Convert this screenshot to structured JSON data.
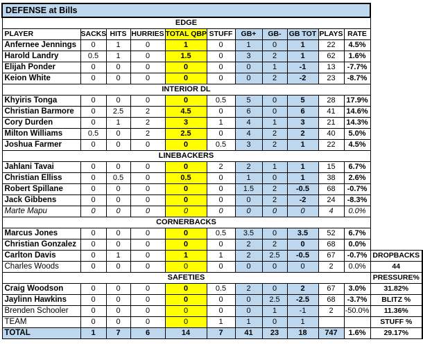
{
  "title": "DEFENSE at Bills",
  "columns": [
    "PLAYER",
    "SACKS",
    "HITS",
    "HURRIES",
    "TOTAL QBP",
    "STUFF",
    "GB+",
    "GB-",
    "GB TOT",
    "PLAYS",
    "RATE"
  ],
  "sections": [
    {
      "name": "EDGE",
      "players": [
        {
          "name": "Anfernee Jennings",
          "style": "bold",
          "values": [
            "0",
            "1",
            "0",
            "1",
            "0",
            "1",
            "0",
            "1",
            "22",
            "4.5%"
          ]
        },
        {
          "name": "Harold Landry",
          "style": "bold",
          "values": [
            "0.5",
            "1",
            "0",
            "1.5",
            "0",
            "3",
            "2",
            "1",
            "62",
            "1.6%"
          ]
        },
        {
          "name": "Elijah Ponder",
          "style": "bold",
          "values": [
            "0",
            "0",
            "0",
            "0",
            "0",
            "0",
            "1",
            "-1",
            "13",
            "-7.7%"
          ]
        },
        {
          "name": "Keion White",
          "style": "bold",
          "values": [
            "0",
            "0",
            "0",
            "0",
            "0",
            "0",
            "2",
            "-2",
            "23",
            "-8.7%"
          ]
        }
      ]
    },
    {
      "name": "INTERIOR DL",
      "players": [
        {
          "name": "Khyiris Tonga",
          "style": "bold",
          "values": [
            "0",
            "0",
            "0",
            "0",
            "0.5",
            "5",
            "0",
            "5",
            "28",
            "17.9%"
          ]
        },
        {
          "name": "Christian Barmore",
          "style": "bold",
          "values": [
            "0",
            "2.5",
            "2",
            "4.5",
            "0",
            "6",
            "0",
            "6",
            "41",
            "14.6%"
          ]
        },
        {
          "name": "Cory Durden",
          "style": "bold",
          "values": [
            "0",
            "1",
            "2",
            "3",
            "1",
            "4",
            "1",
            "3",
            "21",
            "14.3%"
          ]
        },
        {
          "name": "Milton Williams",
          "style": "bold",
          "values": [
            "0.5",
            "0",
            "2",
            "2.5",
            "0",
            "4",
            "2",
            "2",
            "40",
            "5.0%"
          ]
        },
        {
          "name": "Joshua Farmer",
          "style": "bold",
          "values": [
            "0",
            "0",
            "0",
            "0",
            "0.5",
            "3",
            "2",
            "1",
            "22",
            "4.5%"
          ]
        }
      ]
    },
    {
      "name": "LINEBACKERS",
      "players": [
        {
          "name": "Jahlani Tavai",
          "style": "bold",
          "values": [
            "0",
            "0",
            "0",
            "0",
            "2",
            "2",
            "1",
            "1",
            "15",
            "6.7%"
          ]
        },
        {
          "name": "Christian Elliss",
          "style": "bold",
          "values": [
            "0",
            "0.5",
            "0",
            "0.5",
            "0",
            "1",
            "0",
            "1",
            "38",
            "2.6%"
          ]
        },
        {
          "name": "Robert Spillane",
          "style": "bold",
          "values": [
            "0",
            "0",
            "0",
            "0",
            "0",
            "1.5",
            "2",
            "-0.5",
            "68",
            "-0.7%"
          ]
        },
        {
          "name": "Jack Gibbens",
          "style": "bold",
          "values": [
            "0",
            "0",
            "0",
            "0",
            "0",
            "0",
            "2",
            "-2",
            "24",
            "-8.3%"
          ]
        },
        {
          "name": "Marte Mapu",
          "style": "italic",
          "values": [
            "0",
            "0",
            "0",
            "0",
            "0",
            "0",
            "0",
            "0",
            "4",
            "0.0%"
          ]
        }
      ]
    },
    {
      "name": "CORNERBACKS",
      "players": [
        {
          "name": "Marcus Jones",
          "style": "bold",
          "values": [
            "0",
            "0",
            "0",
            "0",
            "0.5",
            "3.5",
            "0",
            "3.5",
            "52",
            "6.7%"
          ]
        },
        {
          "name": "Christian Gonzalez",
          "style": "bold",
          "values": [
            "0",
            "0",
            "0",
            "0",
            "0",
            "2",
            "2",
            "0",
            "68",
            "0.0%"
          ]
        },
        {
          "name": "Carlton Davis",
          "style": "bold",
          "values": [
            "0",
            "1",
            "0",
            "1",
            "1",
            "2",
            "2.5",
            "-0.5",
            "67",
            "-0.7%"
          ]
        },
        {
          "name": "Charles Woods",
          "style": "regular",
          "values": [
            "0",
            "0",
            "0",
            "0",
            "0",
            "0",
            "0",
            "0",
            "2",
            "0.0%"
          ]
        }
      ]
    },
    {
      "name": "SAFETIES",
      "players": [
        {
          "name": "Craig Woodson",
          "style": "bold",
          "values": [
            "0",
            "0",
            "0",
            "0",
            "0.5",
            "2",
            "0",
            "2",
            "67",
            "3.0%"
          ]
        },
        {
          "name": "Jaylinn Hawkins",
          "style": "bold",
          "values": [
            "0",
            "0",
            "0",
            "0",
            "0",
            "0",
            "2.5",
            "-2.5",
            "68",
            "-3.7%"
          ]
        },
        {
          "name": "Brenden Schooler",
          "style": "regular",
          "values": [
            "0",
            "0",
            "0",
            "0",
            "0",
            "0",
            "1",
            "-1",
            "2",
            "-50.0%"
          ]
        },
        {
          "name": "TEAM",
          "style": "regular",
          "values": [
            "0",
            "0",
            "0",
            "0",
            "1",
            "1",
            "0",
            "1",
            "",
            ""
          ]
        }
      ]
    }
  ],
  "total_row": {
    "label": "TOTAL",
    "values": [
      "1",
      "7",
      "6",
      "14",
      "7",
      "41",
      "23",
      "18",
      "747",
      "1.6%"
    ]
  },
  "side_cells": [
    {
      "name": "dropbacks-label",
      "text": "DROPBACKS"
    },
    {
      "name": "dropbacks-value",
      "text": "44"
    },
    {
      "name": "pressure-pct-label",
      "text": "PRESSURE%"
    },
    {
      "name": "pressure-pct-value",
      "text": "31.82%"
    },
    {
      "name": "blitz-pct-label",
      "text": "BLITZ %"
    },
    {
      "name": "blitz-pct-value",
      "text": "11.36%"
    },
    {
      "name": "stuff-pct-label",
      "text": "STUFF %"
    },
    {
      "name": "stuff-pct-value",
      "text": "29.17%"
    }
  ],
  "colors": {
    "header_blue": "#BDD7EE",
    "highlight_yellow": "#FFFF00",
    "border_black": "#000000"
  }
}
